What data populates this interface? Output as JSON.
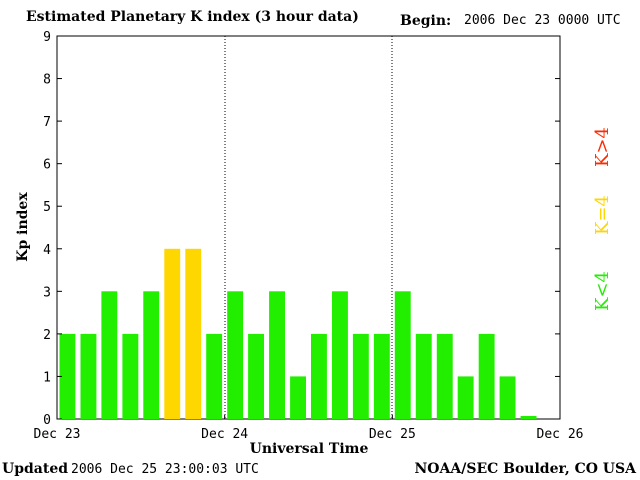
{
  "header": {
    "title": "Estimated Planetary K index (3 hour data)",
    "begin_label": "Begin:",
    "begin_value": "2006 Dec 23 0000 UTC"
  },
  "footer": {
    "updated_label": "Updated",
    "updated_value": "2006 Dec 25 23:00:03 UTC",
    "credit": "NOAA/SEC Boulder, CO USA"
  },
  "legend": [
    {
      "label": "K>4",
      "color": "#ff2a00"
    },
    {
      "label": "K=4",
      "color": "#ffd700"
    },
    {
      "label": "K<4",
      "color": "#22ee00"
    }
  ],
  "chart_data": {
    "type": "bar",
    "title": "Estimated Planetary K index (3 hour data)",
    "xlabel": "Universal Time",
    "ylabel": "Kp index",
    "ylim": [
      0,
      9
    ],
    "yticks": [
      "0",
      "1",
      "2",
      "3",
      "4",
      "5",
      "6",
      "7",
      "8",
      "9"
    ],
    "xtick_labels": [
      "Dec 23",
      "Dec 24",
      "Dec 25",
      "Dec 26"
    ],
    "values": [
      2,
      2,
      3,
      2,
      3,
      4,
      4,
      2,
      3,
      2,
      3,
      1,
      2,
      3,
      2,
      2,
      3,
      2,
      2,
      1,
      2,
      1,
      0.07
    ],
    "colors": {
      "below_4": "#22ee00",
      "equal_4": "#ffd700",
      "above_4": "#ff2a00"
    },
    "grid": false
  }
}
